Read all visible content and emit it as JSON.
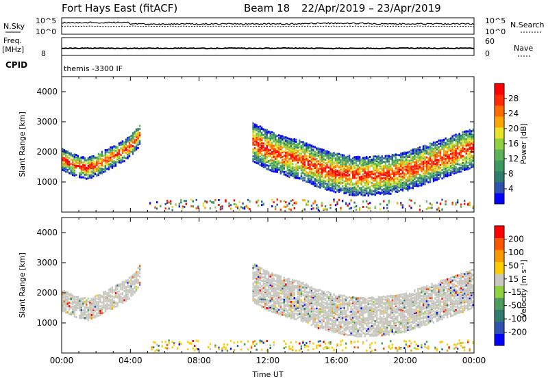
{
  "header": {
    "station": "Fort Hays East (fitACF)",
    "beam": "Beam 18",
    "dates": "22/Apr/2019 – 23/Apr/2019"
  },
  "top_panels": {
    "nsky_label": "N.Sky",
    "nsky_ticks": [
      "10^5",
      "10^0"
    ],
    "nsearch_label": "N.Search",
    "nsearch_ticks": [
      "10^5",
      "10^0"
    ],
    "freq_label": "Freq.",
    "freq_unit": "[MHz]",
    "freq_tick": "8",
    "nave_label": "Nave",
    "nave_ticks": [
      "60",
      "0"
    ],
    "cpid_label": "CPID",
    "cpid_value": "themis -3300 IF"
  },
  "chart_data": [
    {
      "type": "heatmap",
      "name": "power",
      "ylabel": "Slant Range [km]",
      "xlabel": "",
      "ylim": [
        0,
        4500
      ],
      "xlim": [
        0,
        24
      ],
      "x_ticks": [
        "00:00",
        "04:00",
        "08:00",
        "12:00",
        "16:00",
        "20:00",
        "00:00"
      ],
      "y_ticks": [
        "1000",
        "2000",
        "3000",
        "4000"
      ],
      "colorbar_label": "Power [dB]",
      "colorbar_ticks": [
        "28",
        "24",
        "20",
        "16",
        "12",
        "8",
        "4"
      ],
      "colorbar_colors": [
        "#0000ff",
        "#2f52b0",
        "#2f7b6e",
        "#3d9a5e",
        "#5bb35a",
        "#8fd13f",
        "#e8e22a",
        "#ffa500",
        "#ff6a00",
        "#ff2a00",
        "#ff0000"
      ],
      "echo_bands": [
        {
          "t": [
            0.0,
            0.5,
            1.0,
            1.5,
            2.0,
            2.5,
            3.0,
            3.5,
            4.0,
            4.5
          ],
          "center_km": [
            1800,
            1650,
            1550,
            1500,
            1600,
            1750,
            1900,
            2050,
            2250,
            2600
          ]
        },
        {
          "t": [
            11.0,
            12.0,
            13.0,
            14.0,
            15.0,
            16.0,
            17.0,
            18.0,
            19.0,
            20.0,
            21.0,
            22.0,
            23.0,
            24.0
          ],
          "center_km": [
            2400,
            2100,
            1900,
            1750,
            1500,
            1350,
            1250,
            1250,
            1300,
            1400,
            1600,
            1800,
            2000,
            2200
          ]
        }
      ]
    },
    {
      "type": "heatmap",
      "name": "velocity",
      "ylabel": "Slant Range [km]",
      "xlabel": "Time UT",
      "ylim": [
        0,
        4500
      ],
      "xlim": [
        0,
        24
      ],
      "x_ticks": [
        "00:00",
        "04:00",
        "08:00",
        "12:00",
        "16:00",
        "20:00",
        "00:00"
      ],
      "y_ticks": [
        "1000",
        "2000",
        "3000",
        "4000"
      ],
      "colorbar_label": "Velocity [m s⁻¹]",
      "colorbar_ticks": [
        "200",
        "100",
        "50",
        "15",
        "-15",
        "-50",
        "-100",
        "-200"
      ],
      "colorbar_colors": [
        "#0000ff",
        "#2f52b0",
        "#2f7b6e",
        "#4f9b5e",
        "#8fd13f",
        "#c8c8c0",
        "#ffcc00",
        "#ff9900",
        "#ff5500",
        "#ff0000"
      ],
      "ground_scatter_color": "#c8c8c0"
    }
  ]
}
